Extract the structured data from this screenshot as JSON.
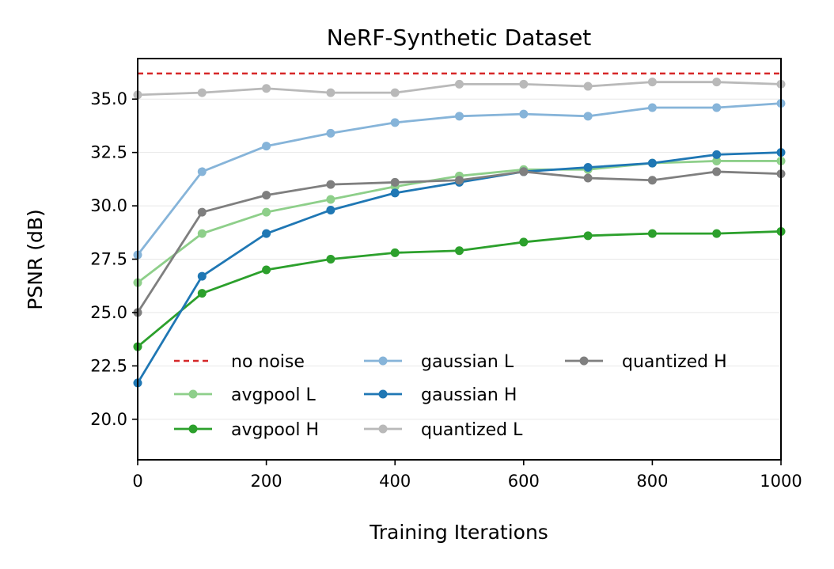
{
  "chart_data": {
    "type": "line",
    "title": "NeRF-Synthetic Dataset",
    "xlabel": "Training Iterations",
    "ylabel": "PSNR (dB)",
    "xlim": [
      0,
      1000
    ],
    "ylim": [
      18.1,
      36.9
    ],
    "xticks": [
      0,
      200,
      400,
      600,
      800,
      1000
    ],
    "yticks": [
      20.0,
      22.5,
      25.0,
      27.5,
      30.0,
      32.5,
      35.0
    ],
    "xtick_labels": [
      "0",
      "200",
      "400",
      "600",
      "800",
      "1000"
    ],
    "ytick_labels": [
      "20.0",
      "22.5",
      "25.0",
      "27.5",
      "30.0",
      "32.5",
      "35.0"
    ],
    "grid": "horizontal",
    "legend_placement": "lower-center",
    "x": [
      0,
      100,
      200,
      300,
      400,
      500,
      600,
      700,
      800,
      900,
      1000
    ],
    "reference_line": {
      "name": "no noise",
      "value": 36.2,
      "color": "#d62728",
      "style": "dashed"
    },
    "series": [
      {
        "name": "avgpool L",
        "color": "#8ecf8a",
        "values": [
          26.4,
          28.7,
          29.7,
          30.3,
          30.9,
          31.4,
          31.7,
          31.7,
          32.0,
          32.1,
          32.1
        ]
      },
      {
        "name": "avgpool H",
        "color": "#2ca02c",
        "values": [
          23.4,
          25.9,
          27.0,
          27.5,
          27.8,
          27.9,
          28.3,
          28.6,
          28.7,
          28.7,
          28.8
        ]
      },
      {
        "name": "gaussian L",
        "color": "#86b4d9",
        "values": [
          27.7,
          31.6,
          32.8,
          33.4,
          33.9,
          34.2,
          34.3,
          34.2,
          34.6,
          34.6,
          34.8
        ]
      },
      {
        "name": "gaussian H",
        "color": "#1f77b4",
        "values": [
          21.7,
          26.7,
          28.7,
          29.8,
          30.6,
          31.1,
          31.6,
          31.8,
          32.0,
          32.4,
          32.5
        ]
      },
      {
        "name": "quantized L",
        "color": "#b9b9b9",
        "values": [
          35.2,
          35.3,
          35.5,
          35.3,
          35.3,
          35.7,
          35.7,
          35.6,
          35.8,
          35.8,
          35.7
        ]
      },
      {
        "name": "quantized H",
        "color": "#7f7f7f",
        "values": [
          25.0,
          29.7,
          30.5,
          31.0,
          31.1,
          31.2,
          31.6,
          31.3,
          31.2,
          31.6,
          31.5
        ]
      }
    ]
  }
}
